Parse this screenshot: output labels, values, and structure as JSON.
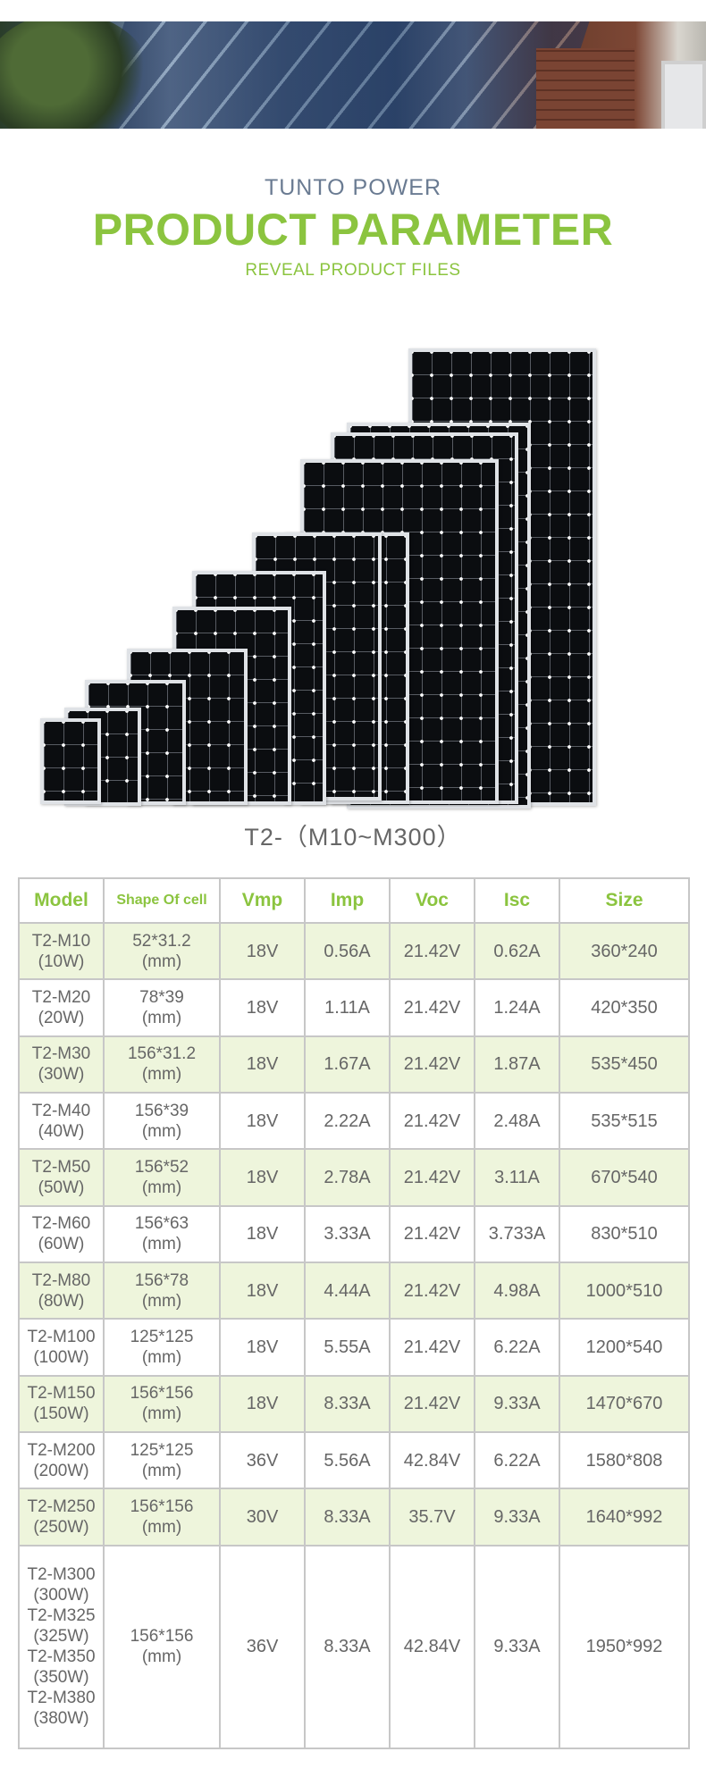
{
  "header": {
    "brand": "TUNTO POWER",
    "title": "PRODUCT PARAMETER",
    "subtitle": "REVEAL PRODUCT FILES"
  },
  "product": {
    "series_label": "T2-（M10~M300）"
  },
  "colors": {
    "accent_green": "#8bc43f",
    "row_highlight": "#eef5dc",
    "brand_gray_blue": "#6a7b92"
  },
  "table": {
    "headers": [
      "Model",
      "Shape Of cell",
      "Vmp",
      "Imp",
      "Voc",
      "Isc",
      "Size"
    ],
    "rows": [
      {
        "model": [
          "T2-M10",
          "(10W)"
        ],
        "shape": [
          "52*31.2",
          "(mm)"
        ],
        "vmp": "18V",
        "imp": "0.56A",
        "voc": "21.42V",
        "isc": "0.62A",
        "size": "360*240"
      },
      {
        "model": [
          "T2-M20",
          "(20W)"
        ],
        "shape": [
          "78*39",
          "(mm)"
        ],
        "vmp": "18V",
        "imp": "1.11A",
        "voc": "21.42V",
        "isc": "1.24A",
        "size": "420*350"
      },
      {
        "model": [
          "T2-M30",
          "(30W)"
        ],
        "shape": [
          "156*31.2",
          "(mm)"
        ],
        "vmp": "18V",
        "imp": "1.67A",
        "voc": "21.42V",
        "isc": "1.87A",
        "size": "535*450"
      },
      {
        "model": [
          "T2-M40",
          "(40W)"
        ],
        "shape": [
          "156*39",
          "(mm)"
        ],
        "vmp": "18V",
        "imp": "2.22A",
        "voc": "21.42V",
        "isc": "2.48A",
        "size": "535*515"
      },
      {
        "model": [
          "T2-M50",
          "(50W)"
        ],
        "shape": [
          "156*52",
          "(mm)"
        ],
        "vmp": "18V",
        "imp": "2.78A",
        "voc": "21.42V",
        "isc": "3.11A",
        "size": "670*540"
      },
      {
        "model": [
          "T2-M60",
          "(60W)"
        ],
        "shape": [
          "156*63",
          "(mm)"
        ],
        "vmp": "18V",
        "imp": "3.33A",
        "voc": "21.42V",
        "isc": "3.733A",
        "size": "830*510"
      },
      {
        "model": [
          "T2-M80",
          "(80W)"
        ],
        "shape": [
          "156*78",
          "(mm)"
        ],
        "vmp": "18V",
        "imp": "4.44A",
        "voc": "21.42V",
        "isc": "4.98A",
        "size": "1000*510"
      },
      {
        "model": [
          "T2-M100",
          "(100W)"
        ],
        "shape": [
          "125*125",
          "(mm)"
        ],
        "vmp": "18V",
        "imp": "5.55A",
        "voc": "21.42V",
        "isc": "6.22A",
        "size": "1200*540"
      },
      {
        "model": [
          "T2-M150",
          "(150W)"
        ],
        "shape": [
          "156*156",
          "(mm)"
        ],
        "vmp": "18V",
        "imp": "8.33A",
        "voc": "21.42V",
        "isc": "9.33A",
        "size": "1470*670"
      },
      {
        "model": [
          "T2-M200",
          "(200W)"
        ],
        "shape": [
          "125*125",
          "(mm)"
        ],
        "vmp": "36V",
        "imp": "5.56A",
        "voc": "42.84V",
        "isc": "6.22A",
        "size": "1580*808"
      },
      {
        "model": [
          "T2-M250",
          "(250W)"
        ],
        "shape": [
          "156*156",
          "(mm)"
        ],
        "vmp": "30V",
        "imp": "8.33A",
        "voc": "35.7V",
        "isc": "9.33A",
        "size": "1640*992"
      },
      {
        "model": [
          "T2-M300",
          "(300W)",
          "T2-M325",
          "(325W)",
          "T2-M350",
          "(350W)",
          "T2-M380",
          "(380W)"
        ],
        "shape": [
          "156*156",
          "(mm)"
        ],
        "vmp": "36V",
        "imp": "8.33A",
        "voc": "42.84V",
        "isc": "9.33A",
        "size": "1950*992"
      }
    ]
  }
}
